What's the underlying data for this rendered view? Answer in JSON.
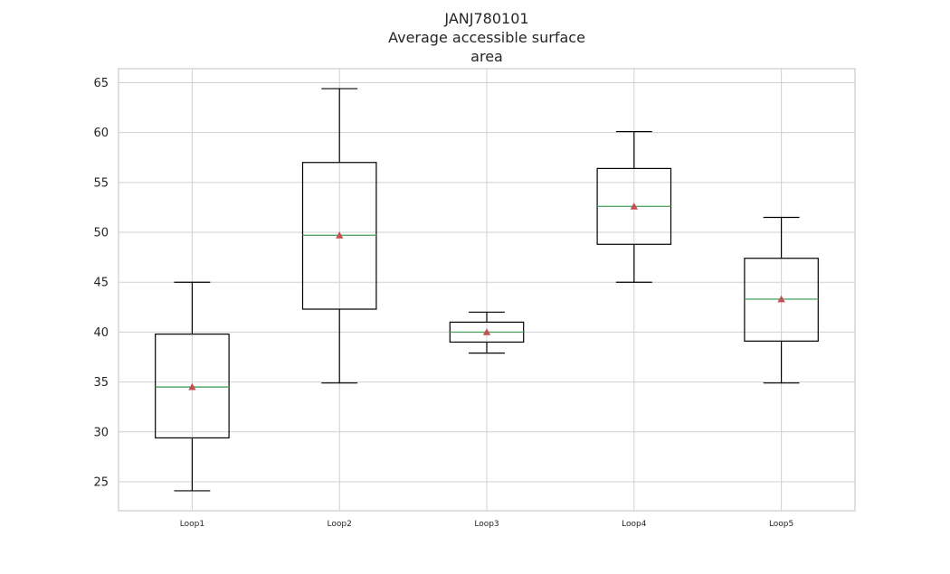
{
  "chart_data": {
    "type": "box",
    "title_lines": [
      "JANJ780101",
      "Average accessible surface",
      "area"
    ],
    "xlabel": "",
    "ylabel": "",
    "ylim": [
      22.1,
      66.4
    ],
    "yticks": [
      25,
      30,
      35,
      40,
      45,
      50,
      55,
      60,
      65
    ],
    "grid": true,
    "categories": [
      "Loop1",
      "Loop2",
      "Loop3",
      "Loop4",
      "Loop5"
    ],
    "boxes": [
      {
        "name": "Loop1",
        "whisker_low": 24.1,
        "q1": 29.4,
        "median": 34.5,
        "mean": 34.5,
        "q3": 39.8,
        "whisker_high": 45.0
      },
      {
        "name": "Loop2",
        "whisker_low": 34.9,
        "q1": 42.3,
        "median": 49.7,
        "mean": 49.7,
        "q3": 57.0,
        "whisker_high": 64.4
      },
      {
        "name": "Loop3",
        "whisker_low": 37.9,
        "q1": 39.0,
        "median": 40.0,
        "mean": 40.0,
        "q3": 41.0,
        "whisker_high": 42.0
      },
      {
        "name": "Loop4",
        "whisker_low": 45.0,
        "q1": 48.8,
        "median": 52.6,
        "mean": 52.6,
        "q3": 56.4,
        "whisker_high": 60.1
      },
      {
        "name": "Loop5",
        "whisker_low": 34.9,
        "q1": 39.1,
        "median": 43.3,
        "mean": 43.3,
        "q3": 47.4,
        "whisker_high": 51.5
      }
    ],
    "colors": {
      "box": "#000000",
      "median": "#55a868",
      "mean_marker": "#c44e52",
      "grid": "#d0d0d0",
      "frame": "#cccccc"
    }
  }
}
